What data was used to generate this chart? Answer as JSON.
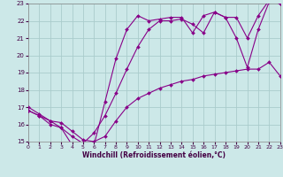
{
  "xlabel": "Windchill (Refroidissement éolien,°C)",
  "xlim": [
    0,
    23
  ],
  "ylim": [
    15,
    23
  ],
  "yticks": [
    15,
    16,
    17,
    18,
    19,
    20,
    21,
    22,
    23
  ],
  "xticks": [
    0,
    1,
    2,
    3,
    4,
    5,
    6,
    7,
    8,
    9,
    10,
    11,
    12,
    13,
    14,
    15,
    16,
    17,
    18,
    19,
    20,
    21,
    22,
    23
  ],
  "background_color": "#cce8e8",
  "grid_color": "#aacccc",
  "line_color": "#880088",
  "line1_x": [
    0,
    1,
    2,
    3,
    4,
    5,
    6,
    7,
    8,
    9,
    10,
    11,
    12,
    13,
    14,
    15,
    16,
    17,
    18,
    19,
    20,
    21,
    22,
    23
  ],
  "line1_y": [
    17.0,
    16.6,
    16.2,
    15.8,
    14.8,
    14.8,
    14.8,
    17.3,
    19.8,
    21.5,
    22.3,
    22.0,
    22.1,
    22.2,
    22.2,
    21.3,
    22.3,
    22.5,
    22.2,
    22.2,
    21.0,
    22.3,
    23.2,
    23.0
  ],
  "line2_x": [
    0,
    1,
    2,
    3,
    4,
    5,
    6,
    7,
    8,
    9,
    10,
    11,
    12,
    13,
    14,
    15,
    16,
    17,
    18,
    19,
    20,
    21,
    22,
    23
  ],
  "line2_y": [
    16.8,
    16.5,
    16.2,
    16.1,
    15.6,
    15.1,
    15.0,
    15.3,
    16.2,
    17.0,
    17.5,
    17.8,
    18.1,
    18.3,
    18.5,
    18.6,
    18.8,
    18.9,
    19.0,
    19.1,
    19.2,
    19.2,
    19.6,
    18.8
  ],
  "line3_x": [
    0,
    1,
    2,
    3,
    4,
    5,
    6,
    7,
    8,
    9,
    10,
    11,
    12,
    13,
    14,
    15,
    16,
    17,
    18,
    19,
    20,
    21,
    22,
    23
  ],
  "line3_y": [
    16.8,
    16.5,
    16.0,
    15.8,
    15.3,
    14.9,
    15.5,
    16.5,
    17.8,
    19.2,
    20.5,
    21.5,
    22.0,
    22.0,
    22.1,
    21.8,
    21.3,
    22.5,
    22.2,
    21.0,
    19.3,
    21.5,
    23.1,
    23.0
  ]
}
